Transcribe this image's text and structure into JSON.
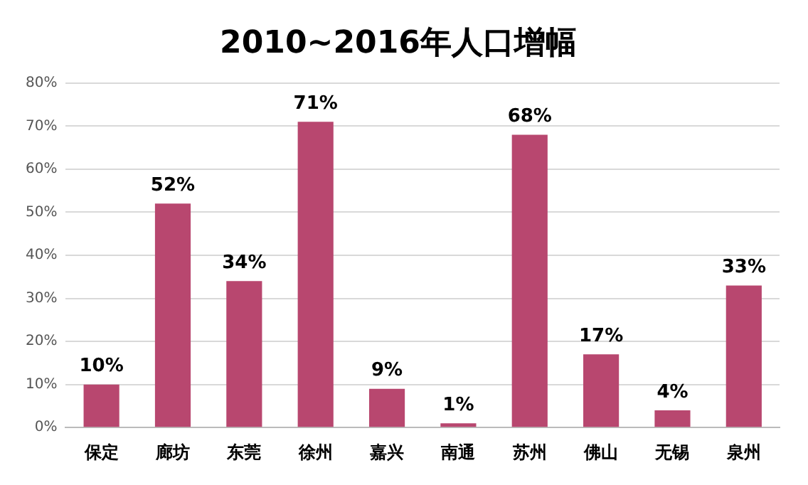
{
  "chart_data": {
    "type": "bar",
    "title": "2010~2016年人口增幅",
    "categories": [
      "保定",
      "廊坊",
      "东莞",
      "徐州",
      "嘉兴",
      "南通",
      "苏州",
      "佛山",
      "无锡",
      "泉州"
    ],
    "values": [
      10,
      52,
      34,
      71,
      9,
      1,
      68,
      17,
      4,
      33
    ],
    "value_labels": [
      "10%",
      "52%",
      "34%",
      "71%",
      "9%",
      "1%",
      "68%",
      "17%",
      "4%",
      "33%"
    ],
    "color": "#b8476f",
    "ylim": [
      0,
      80
    ],
    "yticks": [
      {
        "value": 0,
        "label": "0%"
      },
      {
        "value": 10,
        "label": "10%"
      },
      {
        "value": 20,
        "label": "20%"
      },
      {
        "value": 30,
        "label": "30%"
      },
      {
        "value": 40,
        "label": "40%"
      },
      {
        "value": 50,
        "label": "50%"
      },
      {
        "value": 60,
        "label": "60%"
      },
      {
        "value": 70,
        "label": "70%"
      },
      {
        "value": 80,
        "label": "80%"
      }
    ],
    "grid": "y"
  }
}
